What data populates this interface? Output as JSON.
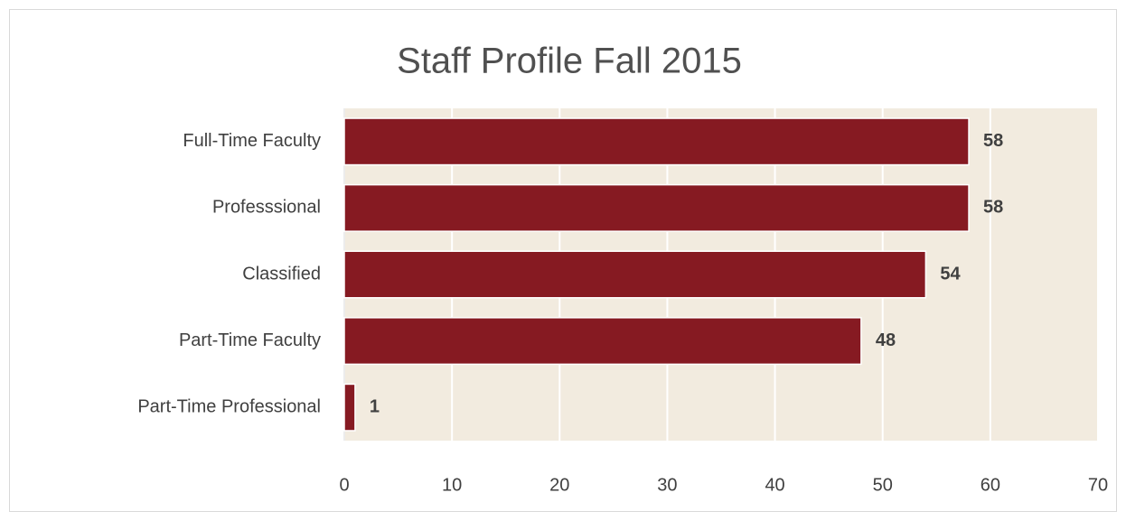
{
  "chart_data": {
    "type": "bar",
    "orientation": "horizontal",
    "title": "Staff Profile Fall 2015",
    "categories": [
      "Full-Time Faculty",
      "Professsional",
      "Classified",
      "Part-Time Faculty",
      "Part-Time Professional"
    ],
    "values": [
      58,
      58,
      54,
      48,
      1
    ],
    "color": "#861a22",
    "xlim": [
      0,
      70
    ],
    "xticks": [
      0,
      10,
      20,
      30,
      40,
      50,
      60,
      70
    ],
    "grid": true
  }
}
